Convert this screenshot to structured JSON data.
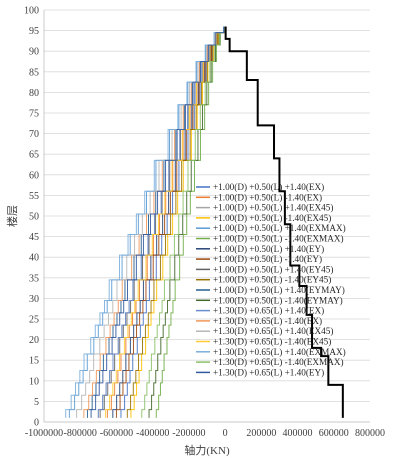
{
  "chart_data": {
    "type": "line",
    "title": "",
    "xlabel": "轴力(KN)",
    "ylabel": "楼层",
    "xlim": [
      -1000000,
      800000
    ],
    "ylim": [
      0,
      100
    ],
    "x_ticks": [
      "-1000000",
      "-800000",
      "-600000",
      "-400000",
      "-200000",
      "0",
      "200000",
      "400000",
      "600000",
      "800000"
    ],
    "y_ticks": [
      "0",
      "5",
      "10",
      "15",
      "20",
      "25",
      "30",
      "35",
      "40",
      "45",
      "50",
      "55",
      "60",
      "65",
      "70",
      "75",
      "80",
      "85",
      "90",
      "95",
      "100"
    ],
    "grid": "horizontal",
    "legend_position": "center-right, inside plot",
    "legend": [
      {
        "label": "+1.00(D) +0.50(L) +1.40(EX)",
        "color": "#4472c4"
      },
      {
        "label": "+1.00(D) +0.50(L) -1.40(EX)",
        "color": "#ed7d31"
      },
      {
        "label": "+1.00(D) +0.50(L) +1.40(EX45)",
        "color": "#a5a5a5"
      },
      {
        "label": "+1.00(D) +0.50(L) -1.40(EX45)",
        "color": "#ffc000"
      },
      {
        "label": "+1.00(D) +0.50(L) +1.40(EXMAX)",
        "color": "#5b9bd5"
      },
      {
        "label": "+1.00(D) +0.50(L) -1.40(EXMAX)",
        "color": "#70ad47"
      },
      {
        "label": "+1.00(D) +0.50(L) +1.40(EY)",
        "color": "#264478"
      },
      {
        "label": "+1.00(D) +0.50(L) -1.40(EY)",
        "color": "#9e480e"
      },
      {
        "label": "+1.00(D) +0.50(L) +1.40(EY45)",
        "color": "#636363"
      },
      {
        "label": "+1.00(D) +0.50(L) -1.40(EY45)",
        "color": "#997300"
      },
      {
        "label": "+1.00(D) +0.50(L) +1.40(EYMAY)",
        "color": "#255e91"
      },
      {
        "label": "+1.00(D) +0.50(L) -1.40(EYMAY)",
        "color": "#43682b"
      },
      {
        "label": "+1.30(D) +0.65(L) +1.40(EX)",
        "color": "#698ed0"
      },
      {
        "label": "+1.30(D) +0.65(L) -1.40(EX)",
        "color": "#f1975a"
      },
      {
        "label": "+1.30(D) +0.65(L) +1.40(EX45)",
        "color": "#b7b7b7"
      },
      {
        "label": "+1.30(D) +0.65(L) -1.40(EX45)",
        "color": "#ffcd33"
      },
      {
        "label": "+1.30(D) +0.65(L) +1.40(EXMAX)",
        "color": "#7cafdd"
      },
      {
        "label": "+1.30(D) +0.65(L) -1.40(EXMAX)",
        "color": "#8cc168"
      },
      {
        "label": "+1.30(D) +0.65(L) +1.40(EY)",
        "color": "#335aa1"
      }
    ],
    "envelope": {
      "color": "#000000",
      "x": [
        3000,
        3000,
        25000,
        25000,
        120000,
        120000,
        180000,
        180000,
        270000,
        270000,
        300000,
        300000,
        330000,
        330000,
        360000,
        360000,
        410000,
        410000,
        450000,
        450000,
        480000,
        480000,
        530000,
        530000,
        570000,
        570000,
        650000,
        650000
      ],
      "y": [
        96,
        93,
        93,
        90,
        90,
        83,
        83,
        72,
        72,
        64,
        64,
        56,
        56,
        48,
        48,
        38,
        38,
        33,
        33,
        26,
        26,
        18,
        18,
        16,
        16,
        9,
        9,
        1
      ]
    },
    "series": [
      {
        "color": "#4472c4",
        "floor_x": [
          -575000,
          -555000,
          -540000,
          -525000,
          -510000,
          -485000,
          -468000,
          -452000,
          -435000,
          -418000,
          -380000,
          -350000,
          -320000,
          -290000,
          -255000,
          -205000,
          -170000,
          -138000,
          -105000,
          -72000,
          -40000,
          -5000
        ]
      },
      {
        "color": "#ed7d31",
        "floor_x": [
          -650000,
          -628000,
          -610000,
          -592000,
          -575000,
          -548000,
          -529000,
          -511000,
          -492000,
          -473000,
          -430000,
          -396000,
          -362000,
          -328000,
          -289000,
          -232000,
          -193000,
          -156000,
          -119000,
          -81000,
          -45000,
          -6000
        ]
      },
      {
        "color": "#a5a5a5",
        "floor_x": [
          -700000,
          -676000,
          -657000,
          -638000,
          -619000,
          -590000,
          -570000,
          -550000,
          -530000,
          -509000,
          -463000,
          -426000,
          -390000,
          -353000,
          -311000,
          -250000,
          -207000,
          -168000,
          -128000,
          -88000,
          -49000,
          -6000
        ]
      },
      {
        "color": "#ffc000",
        "floor_x": [
          -520000,
          -502000,
          -489000,
          -475000,
          -461000,
          -439000,
          -424000,
          -409000,
          -393000,
          -378000,
          -344000,
          -317000,
          -290000,
          -262000,
          -231000,
          -186000,
          -154000,
          -125000,
          -95000,
          -65000,
          -36000,
          -5000
        ]
      },
      {
        "color": "#5b9bd5",
        "floor_x": [
          -860000,
          -831000,
          -808000,
          -784000,
          -761000,
          -725000,
          -700000,
          -676000,
          -651000,
          -626000,
          -569000,
          -524000,
          -479000,
          -434000,
          -382000,
          -307000,
          -255000,
          -206000,
          -157000,
          -108000,
          -60000,
          -8000
        ]
      },
      {
        "color": "#70ad47",
        "floor_x": [
          -380000,
          -367000,
          -357000,
          -347000,
          -337000,
          -321000,
          -310000,
          -299000,
          -288000,
          -276000,
          -251000,
          -231000,
          -212000,
          -192000,
          -169000,
          -136000,
          -113000,
          -91000,
          -69000,
          -48000,
          -27000,
          -3000
        ]
      },
      {
        "color": "#264478",
        "floor_x": [
          -620000,
          -599000,
          -582000,
          -565000,
          -548000,
          -523000,
          -505000,
          -487000,
          -469000,
          -451000,
          -410000,
          -378000,
          -345000,
          -312000,
          -275000,
          -221000,
          -184000,
          -148000,
          -113000,
          -78000,
          -43000,
          -6000
        ]
      },
      {
        "color": "#9e480e",
        "floor_x": [
          -600000,
          -580000,
          -564000,
          -547000,
          -531000,
          -506000,
          -489000,
          -472000,
          -454000,
          -437000,
          -397000,
          -366000,
          -334000,
          -302000,
          -267000,
          -214000,
          -178000,
          -144000,
          -110000,
          -75000,
          -42000,
          -6000
        ]
      },
      {
        "color": "#636363",
        "floor_x": [
          -690000,
          -667000,
          -648000,
          -629000,
          -610000,
          -582000,
          -562000,
          -542000,
          -522000,
          -502000,
          -456000,
          -420000,
          -384000,
          -348000,
          -306000,
          -246000,
          -204000,
          -166000,
          -126000,
          -86000,
          -48000,
          -6000
        ]
      },
      {
        "color": "#997300",
        "floor_x": [
          -540000,
          -522000,
          -507000,
          -493000,
          -478000,
          -456000,
          -440000,
          -424000,
          -409000,
          -393000,
          -357000,
          -329000,
          -301000,
          -272000,
          -240000,
          -193000,
          -160000,
          -130000,
          -99000,
          -68000,
          -38000,
          -5000
        ]
      },
      {
        "color": "#255e91",
        "floor_x": [
          -760000,
          -734000,
          -713000,
          -693000,
          -672000,
          -641000,
          -619000,
          -597000,
          -575000,
          -553000,
          -503000,
          -463000,
          -423000,
          -383000,
          -338000,
          -272000,
          -225000,
          -182000,
          -139000,
          -95000,
          -53000,
          -7000
        ]
      },
      {
        "color": "#43682b",
        "floor_x": [
          -420000,
          -406000,
          -394000,
          -383000,
          -372000,
          -355000,
          -342000,
          -330000,
          -318000,
          -305000,
          -278000,
          -256000,
          -234000,
          -212000,
          -187000,
          -150000,
          -125000,
          -101000,
          -77000,
          -53000,
          -29000,
          -4000
        ]
      },
      {
        "color": "#698ed0",
        "floor_x": [
          -700000,
          -676000,
          -657000,
          -638000,
          -619000,
          -590000,
          -570000,
          -550000,
          -530000,
          -509000,
          -463000,
          -426000,
          -390000,
          -353000,
          -311000,
          -250000,
          -207000,
          -168000,
          -128000,
          -88000,
          -49000,
          -6000
        ]
      },
      {
        "color": "#f1975a",
        "floor_x": [
          -780000,
          -753000,
          -732000,
          -711000,
          -690000,
          -658000,
          -635000,
          -613000,
          -590000,
          -568000,
          -516000,
          -475000,
          -434000,
          -393000,
          -347000,
          -279000,
          -231000,
          -187000,
          -142000,
          -97000,
          -54000,
          -7000
        ]
      },
      {
        "color": "#b7b7b7",
        "floor_x": [
          -820000,
          -792000,
          -770000,
          -748000,
          -726000,
          -692000,
          -668000,
          -644000,
          -620000,
          -597000,
          -543000,
          -500000,
          -457000,
          -414000,
          -365000,
          -293000,
          -243000,
          -197000,
          -150000,
          -103000,
          -57000,
          -7000
        ]
      },
      {
        "color": "#ffcd33",
        "floor_x": [
          -660000,
          -638000,
          -620000,
          -601000,
          -583000,
          -556000,
          -537000,
          -518000,
          -499000,
          -480000,
          -437000,
          -402000,
          -368000,
          -333000,
          -293000,
          -236000,
          -196000,
          -158000,
          -121000,
          -83000,
          -46000,
          -6000
        ]
      },
      {
        "color": "#7cafdd",
        "floor_x": [
          -880000,
          -850000,
          -826000,
          -802000,
          -779000,
          -742000,
          -717000,
          -691000,
          -666000,
          -640000,
          -583000,
          -536000,
          -490000,
          -444000,
          -391000,
          -315000,
          -261000,
          -211000,
          -161000,
          -110000,
          -61000,
          -8000
        ]
      },
      {
        "color": "#8cc168",
        "floor_x": [
          -460000,
          -444000,
          -432000,
          -419000,
          -407000,
          -388000,
          -375000,
          -362000,
          -348000,
          -335000,
          -304000,
          -280000,
          -256000,
          -232000,
          -205000,
          -165000,
          -137000,
          -110000,
          -84000,
          -58000,
          -32000,
          -4000
        ]
      },
      {
        "color": "#335aa1",
        "floor_x": [
          -740000,
          -715000,
          -695000,
          -675000,
          -654000,
          -624000,
          -603000,
          -582000,
          -560000,
          -539000,
          -490000,
          -451000,
          -412000,
          -373000,
          -329000,
          -265000,
          -219000,
          -177000,
          -135000,
          -93000,
          -51000,
          -7000
        ]
      }
    ],
    "series_floors": [
      1,
      5,
      8,
      11,
      14,
      19,
      22,
      25,
      28,
      31,
      38,
      43,
      48,
      53,
      59,
      68,
      74,
      80,
      85,
      90,
      93,
      96
    ]
  }
}
